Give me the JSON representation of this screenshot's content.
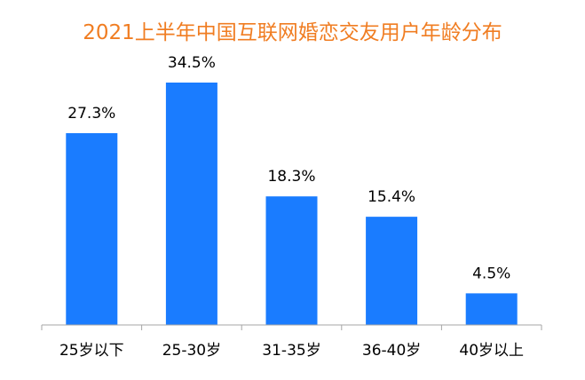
{
  "chart_data": {
    "type": "bar",
    "title": "2021上半年中国互联网婚恋交友用户年龄分布",
    "xlabel": "",
    "ylabel": "",
    "categories": [
      "25岁以下",
      "25-30岁",
      "31-35岁",
      "36-40岁",
      "40岁以上"
    ],
    "values": [
      27.3,
      34.5,
      18.3,
      15.4,
      4.5
    ],
    "value_labels": [
      "27.3%",
      "34.5%",
      "18.3%",
      "15.4%",
      "4.5%"
    ],
    "ylim": [
      0,
      34.5
    ],
    "grid": false,
    "legend": "none",
    "colors": {
      "title": "#f07d22",
      "bar": "#1a7cff",
      "axis": "#a6a6a6",
      "label": "#000000"
    }
  }
}
